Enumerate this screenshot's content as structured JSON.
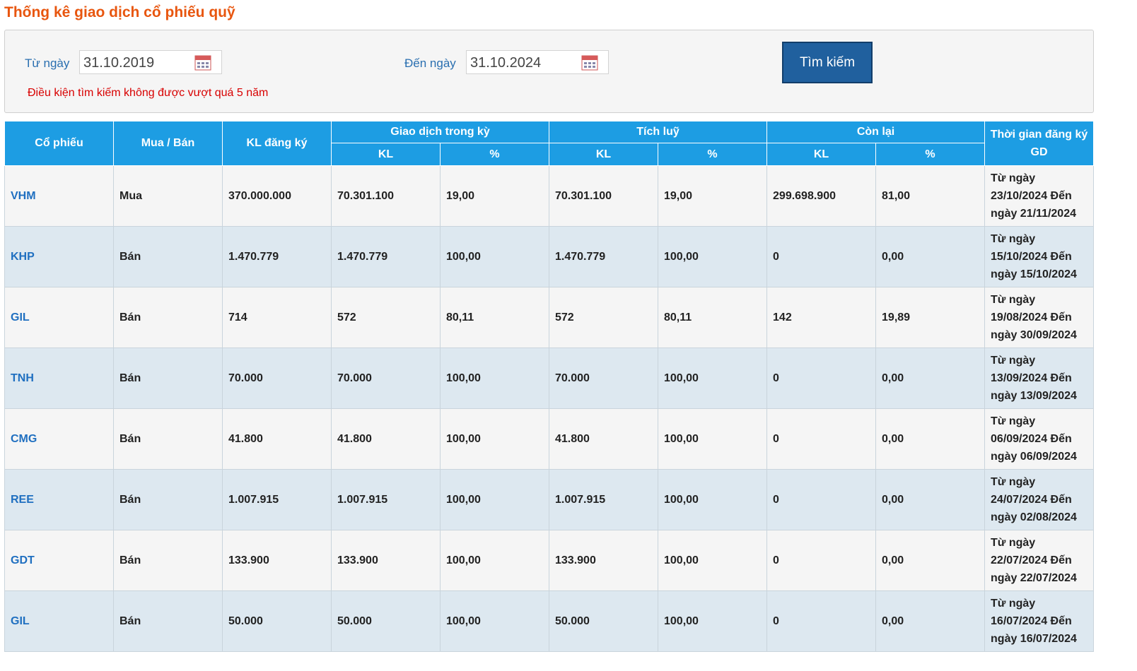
{
  "header": {
    "title": "Thống kê giao dịch cổ phiếu quỹ"
  },
  "search": {
    "from_label": "Từ ngày",
    "from_value": "31.10.2019",
    "to_label": "Đến ngày",
    "to_value": "31.10.2024",
    "button": "Tìm kiếm",
    "warning": "Điều kiện tìm kiếm không được vượt quá 5 năm"
  },
  "table": {
    "headers": {
      "ticker": "Cổ phiếu",
      "side": "Mua / Bán",
      "registered": "KL đăng ký",
      "period": "Giao dịch trong kỳ",
      "cumulative": "Tích luỹ",
      "remaining": "Còn lại",
      "time": "Thời gian đăng ký GD",
      "kl": "KL",
      "pct": "%"
    },
    "rows": [
      [
        "VHM",
        "Mua",
        "370.000.000",
        "70.301.100",
        "19,00",
        "70.301.100",
        "19,00",
        "299.698.900",
        "81,00",
        "Từ ngày 23/10/2024 Đến ngày 21/11/2024"
      ],
      [
        "KHP",
        "Bán",
        "1.470.779",
        "1.470.779",
        "100,00",
        "1.470.779",
        "100,00",
        "0",
        "0,00",
        "Từ ngày 15/10/2024 Đến ngày 15/10/2024"
      ],
      [
        "GIL",
        "Bán",
        "714",
        "572",
        "80,11",
        "572",
        "80,11",
        "142",
        "19,89",
        "Từ ngày 19/08/2024 Đến ngày 30/09/2024"
      ],
      [
        "TNH",
        "Bán",
        "70.000",
        "70.000",
        "100,00",
        "70.000",
        "100,00",
        "0",
        "0,00",
        "Từ ngày 13/09/2024 Đến ngày 13/09/2024"
      ],
      [
        "CMG",
        "Bán",
        "41.800",
        "41.800",
        "100,00",
        "41.800",
        "100,00",
        "0",
        "0,00",
        "Từ ngày 06/09/2024 Đến ngày 06/09/2024"
      ],
      [
        "REE",
        "Bán",
        "1.007.915",
        "1.007.915",
        "100,00",
        "1.007.915",
        "100,00",
        "0",
        "0,00",
        "Từ ngày 24/07/2024 Đến ngày 02/08/2024"
      ],
      [
        "GDT",
        "Bán",
        "133.900",
        "133.900",
        "100,00",
        "133.900",
        "100,00",
        "0",
        "0,00",
        "Từ ngày 22/07/2024 Đến ngày 22/07/2024"
      ],
      [
        "GIL",
        "Bán",
        "50.000",
        "50.000",
        "100,00",
        "50.000",
        "100,00",
        "0",
        "0,00",
        "Từ ngày 16/07/2024 Đến ngày 16/07/2024"
      ]
    ]
  }
}
